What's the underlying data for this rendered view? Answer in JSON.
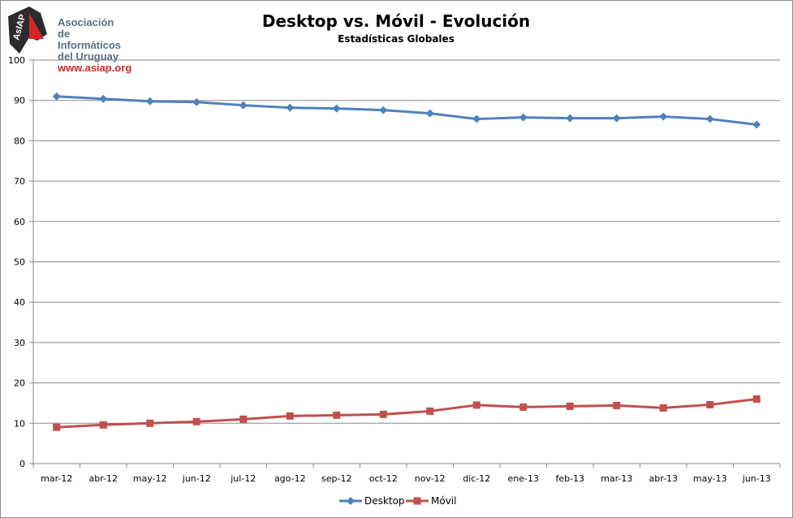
{
  "logo": {
    "badge_text": "AsIAP",
    "org_line_1": "Asociación",
    "org_line_2": "de Informáticos",
    "org_line_3": "del Uruguay",
    "url": "www.asiap.org"
  },
  "chart_data": {
    "type": "line",
    "title": "Desktop vs. Móvil - Evolución",
    "subtitle": "Estadísticas Globales",
    "xlabel": "",
    "ylabel": "",
    "ylim": [
      0,
      100
    ],
    "yticks": [
      0,
      10,
      20,
      30,
      40,
      50,
      60,
      70,
      80,
      90,
      100
    ],
    "grid": true,
    "legend_position": "bottom",
    "categories": [
      "mar-12",
      "abr-12",
      "may-12",
      "jun-12",
      "jul-12",
      "ago-12",
      "sep-12",
      "oct-12",
      "nov-12",
      "dic-12",
      "ene-13",
      "feb-13",
      "mar-13",
      "abr-13",
      "may-13",
      "jun-13"
    ],
    "series": [
      {
        "name": "Desktop",
        "color": "#4f81bd",
        "marker": "diamond",
        "values": [
          91.0,
          90.4,
          89.8,
          89.6,
          88.8,
          88.2,
          88.0,
          87.6,
          86.8,
          85.4,
          85.8,
          85.6,
          85.6,
          86.0,
          85.4,
          84.0
        ]
      },
      {
        "name": "Móvil",
        "color": "#c0504d",
        "marker": "square",
        "values": [
          9.0,
          9.6,
          10.0,
          10.4,
          11.0,
          11.8,
          12.0,
          12.2,
          13.0,
          14.5,
          14.0,
          14.2,
          14.4,
          13.8,
          14.6,
          16.0
        ]
      }
    ]
  }
}
